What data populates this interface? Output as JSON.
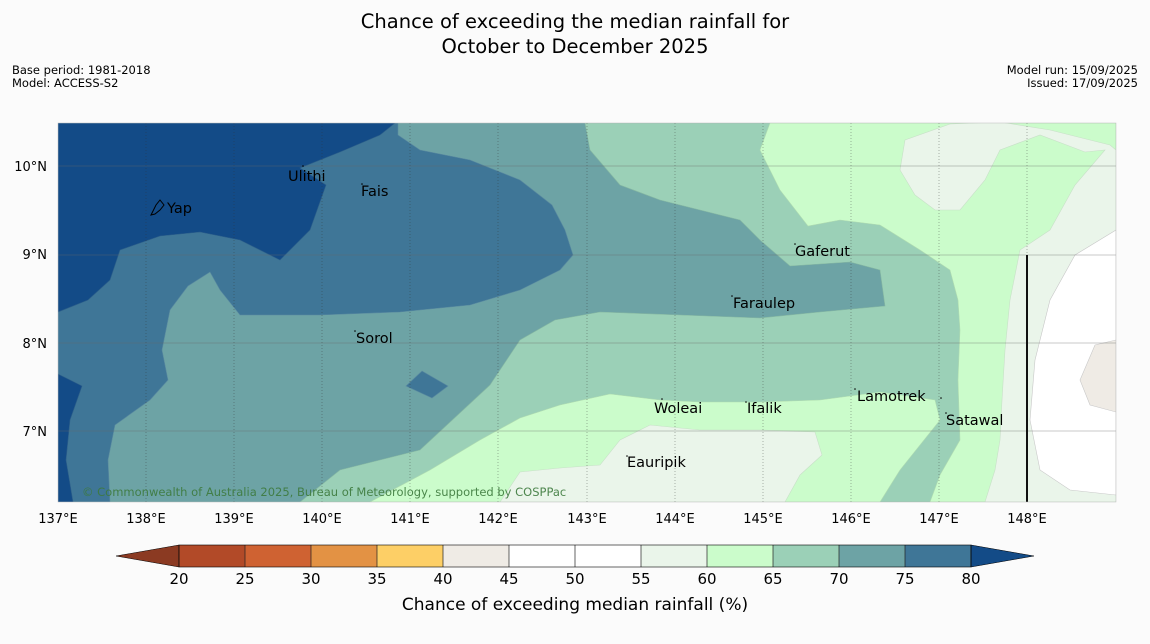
{
  "title": {
    "line1": "Chance of exceeding the median rainfall for",
    "line2": "October to December 2025"
  },
  "meta_left": {
    "base_period": "Base period: 1981-2018",
    "model": "Model: ACCESS-S2"
  },
  "meta_right": {
    "model_run": "Model run: 15/09/2025",
    "issued": "Issued: 17/09/2025"
  },
  "map": {
    "credit": "© Commonwealth of Australia 2025, Bureau of Meteorology, supported by COSPPac",
    "lon_ticks": [
      "137°E",
      "138°E",
      "139°E",
      "140°E",
      "141°E",
      "142°E",
      "143°E",
      "144°E",
      "145°E",
      "146°E",
      "147°E",
      "148°E"
    ],
    "lat_ticks": [
      "10°N",
      "9°N",
      "8°N",
      "7°N"
    ],
    "places": [
      {
        "name": "Yap"
      },
      {
        "name": "Ulithi"
      },
      {
        "name": "Fais"
      },
      {
        "name": "Gaferut"
      },
      {
        "name": "Faraulep"
      },
      {
        "name": "Sorol"
      },
      {
        "name": "Lamotrek"
      },
      {
        "name": "Woleai"
      },
      {
        "name": "Ifalik"
      },
      {
        "name": "Satawal"
      },
      {
        "name": "Eauripik"
      }
    ]
  },
  "colorbar": {
    "label": "Chance of exceeding median rainfall (%)",
    "ticks": [
      "20",
      "25",
      "30",
      "35",
      "40",
      "45",
      "50",
      "55",
      "60",
      "65",
      "70",
      "75",
      "80"
    ],
    "colors": {
      "below_20": "#8b3a22",
      "20_25": "#b24a28",
      "25_30": "#cf6232",
      "30_35": "#e39244",
      "35_40": "#fdcf66",
      "40_45": "#efebe5",
      "45_50": "#ffffff",
      "50_55": "#ffffff",
      "55_60": "#eaf5ea",
      "60_65": "#cbfccb",
      "65_70": "#9bd0b7",
      "70_75": "#6da3a5",
      "75_80": "#3f7697",
      "above_80": "#134b87"
    }
  }
}
